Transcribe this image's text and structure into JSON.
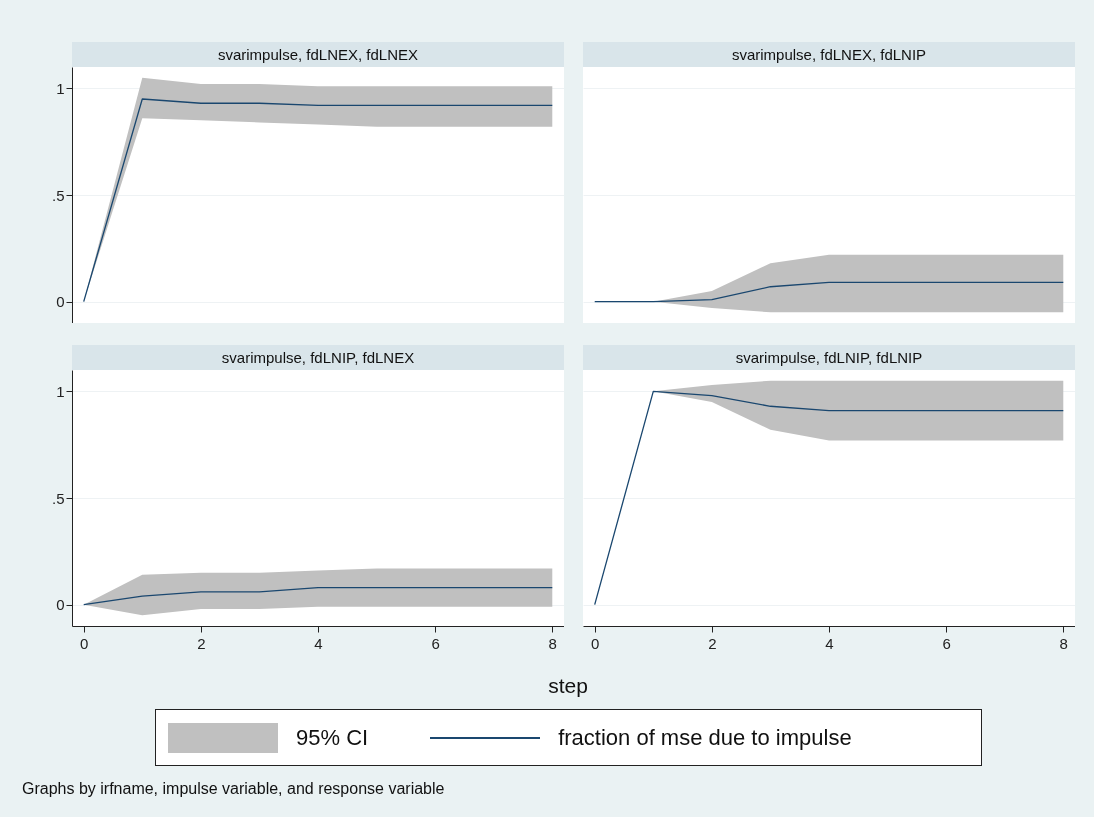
{
  "chart_data": [
    {
      "type": "line",
      "title": "svarimpulse, fdLNEX, fdLNEX",
      "x": [
        0,
        1,
        2,
        3,
        4,
        5,
        6,
        7,
        8
      ],
      "xlim": [
        -0.2,
        8.2
      ],
      "xticks": [
        0,
        2,
        4,
        6,
        8
      ],
      "ylim": [
        -0.1,
        1.1
      ],
      "yticks": [
        {
          "value": 0,
          "label": "0"
        },
        {
          "value": 0.5,
          "label": ".5"
        },
        {
          "value": 1,
          "label": "1"
        }
      ],
      "grid": "y",
      "tick_labels": "y",
      "series": [
        {
          "color": "#1a476f",
          "values": [
            0,
            0.95,
            0.93,
            0.93,
            0.92,
            0.92,
            0.92,
            0.92,
            0.92
          ],
          "lower": [
            0,
            0.86,
            0.85,
            0.84,
            0.83,
            0.82,
            0.82,
            0.82,
            0.82
          ],
          "upper": [
            0,
            1.05,
            1.02,
            1.02,
            1.01,
            1.01,
            1.01,
            1.01,
            1.01
          ]
        }
      ]
    },
    {
      "type": "line",
      "title": "svarimpulse, fdLNEX, fdLNIP",
      "x": [
        0,
        1,
        2,
        3,
        4,
        5,
        6,
        7,
        8
      ],
      "xlim": [
        -0.2,
        8.2
      ],
      "xticks": [
        0,
        2,
        4,
        6,
        8
      ],
      "ylim": [
        -0.1,
        1.1
      ],
      "yticks": [
        0,
        0.5,
        1
      ],
      "grid": "y",
      "tick_labels": false,
      "series": [
        {
          "color": "#1a476f",
          "values": [
            0,
            0,
            0.01,
            0.07,
            0.09,
            0.09,
            0.09,
            0.09,
            0.09
          ],
          "lower": [
            0,
            0,
            -0.03,
            -0.05,
            -0.05,
            -0.05,
            -0.05,
            -0.05,
            -0.05
          ],
          "upper": [
            0,
            0,
            0.05,
            0.18,
            0.22,
            0.22,
            0.22,
            0.22,
            0.22
          ]
        }
      ]
    },
    {
      "type": "line",
      "title": "svarimpulse, fdLNIP, fdLNEX",
      "x": [
        0,
        1,
        2,
        3,
        4,
        5,
        6,
        7,
        8
      ],
      "xlim": [
        -0.2,
        8.2
      ],
      "xticks": [
        0,
        2,
        4,
        6,
        8
      ],
      "ylim": [
        -0.1,
        1.1
      ],
      "yticks": [
        {
          "value": 0,
          "label": "0"
        },
        {
          "value": 0.5,
          "label": ".5"
        },
        {
          "value": 1,
          "label": "1"
        }
      ],
      "grid": "y",
      "series": [
        {
          "color": "#1a476f",
          "values": [
            0,
            0.04,
            0.06,
            0.06,
            0.08,
            0.08,
            0.08,
            0.08,
            0.08
          ],
          "lower": [
            0,
            -0.05,
            -0.02,
            -0.02,
            -0.01,
            -0.01,
            -0.01,
            -0.01,
            -0.01
          ],
          "upper": [
            0,
            0.14,
            0.15,
            0.15,
            0.16,
            0.17,
            0.17,
            0.17,
            0.17
          ]
        }
      ]
    },
    {
      "type": "line",
      "title": "svarimpulse, fdLNIP, fdLNIP",
      "x": [
        0,
        1,
        2,
        3,
        4,
        5,
        6,
        7,
        8
      ],
      "xlim": [
        -0.2,
        8.2
      ],
      "xticks": [
        0,
        2,
        4,
        6,
        8
      ],
      "ylim": [
        -0.1,
        1.1
      ],
      "yticks": [
        0,
        0.5,
        1
      ],
      "grid": "y",
      "tick_labels": "x",
      "xlabel": "step",
      "legend": "bottom",
      "series": [
        {
          "name": "fraction of mse due to impulse",
          "color": "#1a476f",
          "values": [
            0,
            1,
            0.98,
            0.93,
            0.91,
            0.91,
            0.91,
            0.91,
            0.91
          ],
          "lower": [
            0,
            1,
            0.95,
            0.82,
            0.77,
            0.77,
            0.77,
            0.77,
            0.77
          ],
          "upper": [
            0,
            1,
            1.03,
            1.05,
            1.05,
            1.05,
            1.05,
            1.05,
            1.05
          ]
        }
      ],
      "annotations": [
        "95% CI",
        "Graphs by irfname, impulse variable, and response variable"
      ]
    }
  ]
}
